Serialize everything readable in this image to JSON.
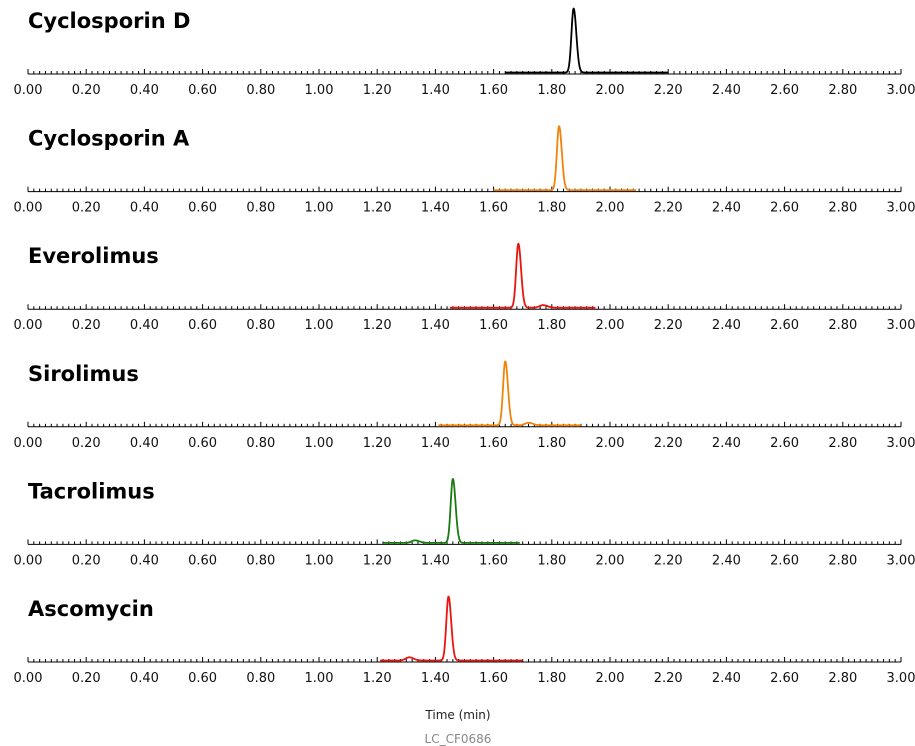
{
  "chart_data": {
    "type": "line",
    "xlabel": "Time (min)",
    "footer": "LC_CF0686",
    "xlim": [
      0,
      3
    ],
    "x_ticks": [
      "0.00",
      "0.20",
      "0.40",
      "0.60",
      "0.80",
      "1.00",
      "1.20",
      "1.40",
      "1.60",
      "1.80",
      "2.00",
      "2.20",
      "2.40",
      "2.60",
      "2.80",
      "3.00"
    ],
    "grid": false,
    "panels": [
      {
        "title": "Cyclosporin D",
        "color": "#000000",
        "trace_start": 1.64,
        "trace_end": 2.2,
        "peaks": [
          {
            "rt": 1.875,
            "height": 1.0
          }
        ]
      },
      {
        "title": "Cyclosporin A",
        "color": "#f0830a",
        "trace_start": 1.6,
        "trace_end": 2.09,
        "peaks": [
          {
            "rt": 1.825,
            "height": 1.0
          }
        ]
      },
      {
        "title": "Everolimus",
        "color": "#e8140f",
        "trace_start": 1.45,
        "trace_end": 1.95,
        "peaks": [
          {
            "rt": 1.685,
            "height": 1.0
          },
          {
            "rt": 1.77,
            "height": 0.04
          }
        ]
      },
      {
        "title": "Sirolimus",
        "color": "#f0830a",
        "trace_start": 1.41,
        "trace_end": 1.9,
        "peaks": [
          {
            "rt": 1.64,
            "height": 1.0
          },
          {
            "rt": 1.72,
            "height": 0.04
          }
        ]
      },
      {
        "title": "Tacrolimus",
        "color": "#1a7a12",
        "trace_start": 1.22,
        "trace_end": 1.69,
        "peaks": [
          {
            "rt": 1.46,
            "height": 1.0
          },
          {
            "rt": 1.33,
            "height": 0.04
          }
        ]
      },
      {
        "title": "Ascomycin",
        "color": "#e8140f",
        "trace_start": 1.21,
        "trace_end": 1.7,
        "peaks": [
          {
            "rt": 1.445,
            "height": 1.0
          },
          {
            "rt": 1.31,
            "height": 0.05
          }
        ]
      }
    ]
  }
}
